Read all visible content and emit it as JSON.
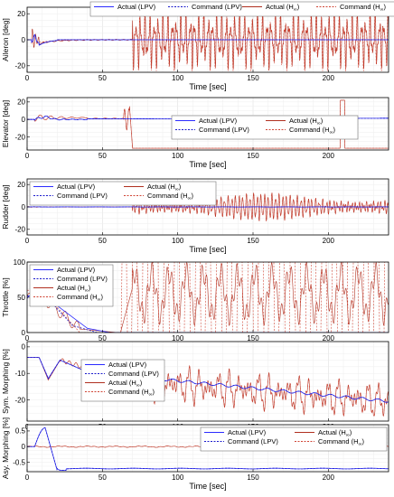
{
  "figure": {
    "background": "#ffffff",
    "grid_color": "#e6e6e6",
    "axis_color": "#000000"
  },
  "colors": {
    "actual_lpv": "#2b2bff",
    "command_lpv": "#1a1acc",
    "actual_hinf": "#b03020",
    "command_hinf": "#d04535"
  },
  "legend_labels": {
    "actual_lpv": "Actual (LPV)",
    "command_lpv": "Command (LPV)",
    "actual_hinf_pre": "Actual (H",
    "command_hinf_pre": "Command (H",
    "hinf_sub": "∞",
    "hinf_close": ")"
  },
  "chart_data": [
    {
      "id": "aileron",
      "type": "line",
      "ylabel": "Aileron [deg]",
      "xlabel": "Time [sec]",
      "xlim": [
        0,
        240
      ],
      "ylim": [
        -25,
        25
      ],
      "xticks": [
        0,
        50,
        100,
        150,
        200
      ],
      "yticks": [
        -20,
        0,
        20
      ],
      "legend_position": "top-right",
      "legend_layout": "row",
      "grid": true,
      "series": [
        {
          "key": "actual_lpv",
          "dash": false,
          "gen": "aileron_lpv"
        },
        {
          "key": "command_lpv",
          "dash": true,
          "gen": "aileron_lpv"
        },
        {
          "key": "actual_hinf",
          "dash": false,
          "gen": "aileron_hinf"
        },
        {
          "key": "command_hinf",
          "dash": true,
          "gen": "aileron_hinf_cmd"
        }
      ]
    },
    {
      "id": "elevator",
      "type": "line",
      "ylabel": "Elevator [deg]",
      "xlabel": "Time [sec]",
      "xlim": [
        0,
        240
      ],
      "ylim": [
        -35,
        25
      ],
      "xticks": [
        0,
        50,
        100,
        150,
        200
      ],
      "yticks": [
        -20,
        0,
        20
      ],
      "legend_position": "center-right",
      "legend_layout": "grid",
      "grid": true,
      "series": [
        {
          "key": "actual_lpv",
          "dash": false,
          "gen": "elevator_lpv"
        },
        {
          "key": "command_lpv",
          "dash": true,
          "gen": "elevator_lpv"
        },
        {
          "key": "actual_hinf",
          "dash": false,
          "gen": "elevator_hinf"
        },
        {
          "key": "command_hinf",
          "dash": true,
          "gen": "elevator_hinf"
        }
      ]
    },
    {
      "id": "rudder",
      "type": "line",
      "ylabel": "Rudder [deg]",
      "xlabel": "Time [sec]",
      "xlim": [
        0,
        240
      ],
      "ylim": [
        -25,
        25
      ],
      "xticks": [
        0,
        50,
        100,
        150,
        200
      ],
      "yticks": [
        -20,
        0,
        20
      ],
      "legend_position": "top-left",
      "legend_layout": "grid",
      "grid": true,
      "series": [
        {
          "key": "actual_lpv",
          "dash": false,
          "gen": "rudder_lpv"
        },
        {
          "key": "command_lpv",
          "dash": true,
          "gen": "rudder_lpv"
        },
        {
          "key": "actual_hinf",
          "dash": false,
          "gen": "rudder_hinf"
        },
        {
          "key": "command_hinf",
          "dash": true,
          "gen": "rudder_hinf"
        }
      ]
    },
    {
      "id": "throttle",
      "type": "line",
      "ylabel": "Throttle [%]",
      "xlabel": "Time [sec]",
      "xlim": [
        0,
        240
      ],
      "ylim": [
        0,
        100
      ],
      "xticks": [
        0,
        50,
        100,
        150,
        200
      ],
      "yticks": [
        0,
        50,
        100
      ],
      "legend_position": "top-left",
      "legend_layout": "column",
      "grid": true,
      "series": [
        {
          "key": "actual_lpv",
          "dash": false,
          "gen": "throttle_lpv"
        },
        {
          "key": "command_lpv",
          "dash": true,
          "gen": "throttle_lpv_cmd"
        },
        {
          "key": "actual_hinf",
          "dash": false,
          "gen": "throttle_hinf"
        },
        {
          "key": "command_hinf",
          "dash": true,
          "gen": "throttle_hinf_cmd"
        }
      ]
    },
    {
      "id": "sym_morphing",
      "type": "line",
      "ylabel": "Sym. Morphing [%]",
      "xlabel": "Time [sec]",
      "xlim": [
        0,
        240
      ],
      "ylim": [
        -28,
        2
      ],
      "xticks": [
        0,
        50,
        100,
        150,
        200
      ],
      "yticks": [
        -20,
        -10,
        0
      ],
      "legend_position": "bottom-left",
      "legend_layout": "column",
      "grid": true,
      "series": [
        {
          "key": "actual_lpv",
          "dash": false,
          "gen": "sym_lpv"
        },
        {
          "key": "command_lpv",
          "dash": true,
          "gen": "sym_lpv"
        },
        {
          "key": "actual_hinf",
          "dash": false,
          "gen": "sym_hinf"
        },
        {
          "key": "command_hinf",
          "dash": true,
          "gen": "sym_hinf"
        }
      ]
    },
    {
      "id": "asy_morphing",
      "type": "line",
      "ylabel": "Asy. Morphing [%]",
      "xlabel": "Time [sec]",
      "xlim": [
        0,
        240
      ],
      "ylim": [
        -0.8,
        0.7
      ],
      "xticks": [
        0,
        50,
        100,
        150,
        200
      ],
      "yticks": [
        -0.5,
        0,
        0.5
      ],
      "legend_position": "top-right",
      "legend_layout": "grid",
      "grid": true,
      "series": [
        {
          "key": "actual_lpv",
          "dash": false,
          "gen": "asy_lpv"
        },
        {
          "key": "command_lpv",
          "dash": true,
          "gen": "asy_lpv"
        },
        {
          "key": "actual_hinf",
          "dash": false,
          "gen": "asy_hinf"
        },
        {
          "key": "command_hinf",
          "dash": true,
          "gen": "asy_hinf"
        }
      ]
    }
  ]
}
